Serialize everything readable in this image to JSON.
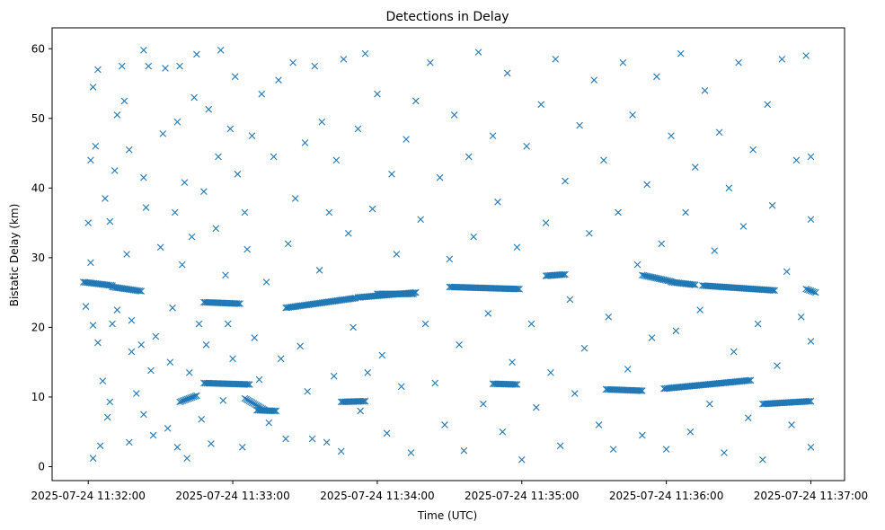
{
  "chart_data": {
    "type": "scatter",
    "title": "Detections in Delay",
    "xlabel": "Time (UTC)",
    "ylabel": "Bistatic Delay (km)",
    "x_start": "2025-07-24 11:32:00",
    "x_ticks": [
      "2025-07-24 11:32:00",
      "2025-07-24 11:33:00",
      "2025-07-24 11:34:00",
      "2025-07-24 11:35:00",
      "2025-07-24 11:36:00",
      "2025-07-24 11:37:00"
    ],
    "ylim": [
      -2,
      63
    ],
    "y_ticks": [
      0,
      10,
      20,
      30,
      40,
      50,
      60
    ],
    "xlim": [
      "2025-07-24 11:31:45",
      "2025-07-24 11:37:14"
    ],
    "grid": false,
    "marker": "x",
    "color": "#1f77b4",
    "tracks": [
      {
        "from": [
          "2025-07-24 11:31:58",
          26.5
        ],
        "to": [
          "2025-07-24 11:32:10",
          26.0
        ]
      },
      {
        "from": [
          "2025-07-24 11:32:10",
          25.8
        ],
        "to": [
          "2025-07-24 11:32:22",
          25.2
        ]
      },
      {
        "from": [
          "2025-07-24 11:32:38",
          9.3
        ],
        "to": [
          "2025-07-24 11:32:45",
          10.2
        ]
      },
      {
        "from": [
          "2025-07-24 11:32:48",
          12.0
        ],
        "to": [
          "2025-07-24 11:33:07",
          11.8
        ]
      },
      {
        "from": [
          "2025-07-24 11:32:48",
          23.6
        ],
        "to": [
          "2025-07-24 11:33:03",
          23.4
        ]
      },
      {
        "from": [
          "2025-07-24 11:33:05",
          9.8
        ],
        "to": [
          "2025-07-24 11:33:13",
          8.2
        ]
      },
      {
        "from": [
          "2025-07-24 11:33:10",
          8.1
        ],
        "to": [
          "2025-07-24 11:33:18",
          8.0
        ]
      },
      {
        "from": [
          "2025-07-24 11:33:22",
          22.8
        ],
        "to": [
          "2025-07-24 11:33:51",
          24.2
        ]
      },
      {
        "from": [
          "2025-07-24 11:33:45",
          9.3
        ],
        "to": [
          "2025-07-24 11:33:55",
          9.4
        ]
      },
      {
        "from": [
          "2025-07-24 11:33:52",
          24.3
        ],
        "to": [
          "2025-07-24 11:34:16",
          25.0
        ]
      },
      {
        "from": [
          "2025-07-24 11:34:00",
          24.8
        ],
        "to": [
          "2025-07-24 11:34:15",
          24.8
        ]
      },
      {
        "from": [
          "2025-07-24 11:34:30",
          25.8
        ],
        "to": [
          "2025-07-24 11:34:59",
          25.5
        ]
      },
      {
        "from": [
          "2025-07-24 11:34:48",
          11.9
        ],
        "to": [
          "2025-07-24 11:34:58",
          11.8
        ]
      },
      {
        "from": [
          "2025-07-24 11:35:10",
          27.4
        ],
        "to": [
          "2025-07-24 11:35:18",
          27.6
        ]
      },
      {
        "from": [
          "2025-07-24 11:35:35",
          11.1
        ],
        "to": [
          "2025-07-24 11:35:50",
          10.9
        ]
      },
      {
        "from": [
          "2025-07-24 11:35:50",
          27.5
        ],
        "to": [
          "2025-07-24 11:36:02",
          26.6
        ]
      },
      {
        "from": [
          "2025-07-24 11:36:02",
          26.5
        ],
        "to": [
          "2025-07-24 11:36:12",
          26.1
        ]
      },
      {
        "from": [
          "2025-07-24 11:35:59",
          11.2
        ],
        "to": [
          "2025-07-24 11:36:35",
          12.4
        ]
      },
      {
        "from": [
          "2025-07-24 11:36:15",
          26.0
        ],
        "to": [
          "2025-07-24 11:36:45",
          25.3
        ]
      },
      {
        "from": [
          "2025-07-24 11:36:40",
          9.0
        ],
        "to": [
          "2025-07-24 11:37:00",
          9.4
        ]
      },
      {
        "from": [
          "2025-07-24 11:36:58",
          25.5
        ],
        "to": [
          "2025-07-24 11:37:02",
          25.0
        ]
      }
    ],
    "scatter_points": [
      [
        "2025-07-24 11:32:00",
        35.0
      ],
      [
        "2025-07-24 11:32:01",
        44.0
      ],
      [
        "2025-07-24 11:32:02",
        54.5
      ],
      [
        "2025-07-24 11:32:04",
        57.0
      ],
      [
        "2025-07-24 11:32:03",
        46.0
      ],
      [
        "2025-07-24 11:32:01",
        29.3
      ],
      [
        "2025-07-24 11:31:59",
        23.0
      ],
      [
        "2025-07-24 11:32:02",
        20.3
      ],
      [
        "2025-07-24 11:32:04",
        17.8
      ],
      [
        "2025-07-24 11:32:02",
        1.2
      ],
      [
        "2025-07-24 11:32:05",
        3.0
      ],
      [
        "2025-07-24 11:32:06",
        12.3
      ],
      [
        "2025-07-24 11:32:08",
        7.1
      ],
      [
        "2025-07-24 11:32:09",
        9.3
      ],
      [
        "2025-07-24 11:32:10",
        20.5
      ],
      [
        "2025-07-24 11:32:12",
        22.5
      ],
      [
        "2025-07-24 11:32:07",
        38.5
      ],
      [
        "2025-07-24 11:32:09",
        35.2
      ],
      [
        "2025-07-24 11:32:11",
        42.5
      ],
      [
        "2025-07-24 11:32:12",
        50.5
      ],
      [
        "2025-07-24 11:32:14",
        57.5
      ],
      [
        "2025-07-24 11:32:15",
        52.5
      ],
      [
        "2025-07-24 11:32:17",
        45.5
      ],
      [
        "2025-07-24 11:32:16",
        30.5
      ],
      [
        "2025-07-24 11:32:18",
        21.0
      ],
      [
        "2025-07-24 11:32:18",
        16.5
      ],
      [
        "2025-07-24 11:32:17",
        3.5
      ],
      [
        "2025-07-24 11:32:20",
        10.5
      ],
      [
        "2025-07-24 11:32:22",
        17.5
      ],
      [
        "2025-07-24 11:32:23",
        7.5
      ],
      [
        "2025-07-24 11:32:24",
        37.2
      ],
      [
        "2025-07-24 11:32:23",
        41.5
      ],
      [
        "2025-07-24 11:32:25",
        57.5
      ],
      [
        "2025-07-24 11:32:23",
        59.8
      ],
      [
        "2025-07-24 11:32:26",
        13.8
      ],
      [
        "2025-07-24 11:32:27",
        4.5
      ],
      [
        "2025-07-24 11:32:28",
        18.7
      ],
      [
        "2025-07-24 11:32:30",
        31.5
      ],
      [
        "2025-07-24 11:32:31",
        47.8
      ],
      [
        "2025-07-24 11:32:32",
        57.2
      ],
      [
        "2025-07-24 11:32:33",
        5.5
      ],
      [
        "2025-07-24 11:32:34",
        15.0
      ],
      [
        "2025-07-24 11:32:35",
        22.8
      ],
      [
        "2025-07-24 11:32:36",
        36.5
      ],
      [
        "2025-07-24 11:32:37",
        2.8
      ],
      [
        "2025-07-24 11:32:37",
        49.5
      ],
      [
        "2025-07-24 11:32:38",
        57.5
      ],
      [
        "2025-07-24 11:32:39",
        29.0
      ],
      [
        "2025-07-24 11:32:40",
        40.8
      ],
      [
        "2025-07-24 11:32:41",
        1.2
      ],
      [
        "2025-07-24 11:32:42",
        13.5
      ],
      [
        "2025-07-24 11:32:43",
        33.0
      ],
      [
        "2025-07-24 11:32:44",
        53.0
      ],
      [
        "2025-07-24 11:32:45",
        59.2
      ],
      [
        "2025-07-24 11:32:46",
        20.5
      ],
      [
        "2025-07-24 11:32:47",
        6.8
      ],
      [
        "2025-07-24 11:32:48",
        39.5
      ],
      [
        "2025-07-24 11:32:49",
        17.5
      ],
      [
        "2025-07-24 11:32:50",
        51.3
      ],
      [
        "2025-07-24 11:32:51",
        3.3
      ],
      [
        "2025-07-24 11:32:53",
        34.2
      ],
      [
        "2025-07-24 11:32:54",
        44.5
      ],
      [
        "2025-07-24 11:32:55",
        59.8
      ],
      [
        "2025-07-24 11:32:56",
        9.5
      ],
      [
        "2025-07-24 11:32:57",
        27.5
      ],
      [
        "2025-07-24 11:32:58",
        20.5
      ],
      [
        "2025-07-24 11:32:59",
        48.5
      ],
      [
        "2025-07-24 11:33:00",
        15.5
      ],
      [
        "2025-07-24 11:33:01",
        56.0
      ],
      [
        "2025-07-24 11:33:02",
        42.0
      ],
      [
        "2025-07-24 11:33:04",
        2.8
      ],
      [
        "2025-07-24 11:33:05",
        36.5
      ],
      [
        "2025-07-24 11:33:06",
        31.2
      ],
      [
        "2025-07-24 11:33:08",
        47.5
      ],
      [
        "2025-07-24 11:33:09",
        18.5
      ],
      [
        "2025-07-24 11:33:11",
        12.5
      ],
      [
        "2025-07-24 11:33:12",
        53.5
      ],
      [
        "2025-07-24 11:33:14",
        26.5
      ],
      [
        "2025-07-24 11:33:15",
        6.3
      ],
      [
        "2025-07-24 11:33:17",
        44.5
      ],
      [
        "2025-07-24 11:33:19",
        55.5
      ],
      [
        "2025-07-24 11:33:20",
        15.5
      ],
      [
        "2025-07-24 11:33:22",
        4.0
      ],
      [
        "2025-07-24 11:33:23",
        32.0
      ],
      [
        "2025-07-24 11:33:25",
        58.0
      ],
      [
        "2025-07-24 11:33:26",
        38.5
      ],
      [
        "2025-07-24 11:33:28",
        17.3
      ],
      [
        "2025-07-24 11:33:30",
        46.5
      ],
      [
        "2025-07-24 11:33:31",
        10.8
      ],
      [
        "2025-07-24 11:33:33",
        4.0
      ],
      [
        "2025-07-24 11:33:34",
        57.5
      ],
      [
        "2025-07-24 11:33:36",
        28.2
      ],
      [
        "2025-07-24 11:33:37",
        49.5
      ],
      [
        "2025-07-24 11:33:39",
        3.5
      ],
      [
        "2025-07-24 11:33:40",
        36.5
      ],
      [
        "2025-07-24 11:33:42",
        13.0
      ],
      [
        "2025-07-24 11:33:43",
        44.0
      ],
      [
        "2025-07-24 11:33:45",
        2.2
      ],
      [
        "2025-07-24 11:33:46",
        58.5
      ],
      [
        "2025-07-24 11:33:48",
        33.5
      ],
      [
        "2025-07-24 11:33:50",
        20.0
      ],
      [
        "2025-07-24 11:33:52",
        48.5
      ],
      [
        "2025-07-24 11:33:53",
        8.0
      ],
      [
        "2025-07-24 11:33:55",
        59.3
      ],
      [
        "2025-07-24 11:33:56",
        13.5
      ],
      [
        "2025-07-24 11:33:58",
        37.0
      ],
      [
        "2025-07-24 11:34:00",
        53.5
      ],
      [
        "2025-07-24 11:34:02",
        16.0
      ],
      [
        "2025-07-24 11:34:04",
        4.8
      ],
      [
        "2025-07-24 11:34:06",
        42.0
      ],
      [
        "2025-07-24 11:34:08",
        30.5
      ],
      [
        "2025-07-24 11:34:10",
        11.5
      ],
      [
        "2025-07-24 11:34:12",
        47.0
      ],
      [
        "2025-07-24 11:34:14",
        2.0
      ],
      [
        "2025-07-24 11:34:16",
        52.5
      ],
      [
        "2025-07-24 11:34:18",
        35.5
      ],
      [
        "2025-07-24 11:34:20",
        20.5
      ],
      [
        "2025-07-24 11:34:22",
        58.0
      ],
      [
        "2025-07-24 11:34:24",
        12.0
      ],
      [
        "2025-07-24 11:34:26",
        41.5
      ],
      [
        "2025-07-24 11:34:28",
        6.0
      ],
      [
        "2025-07-24 11:34:30",
        29.8
      ],
      [
        "2025-07-24 11:34:32",
        50.5
      ],
      [
        "2025-07-24 11:34:34",
        17.5
      ],
      [
        "2025-07-24 11:34:36",
        2.3
      ],
      [
        "2025-07-24 11:34:38",
        44.5
      ],
      [
        "2025-07-24 11:34:40",
        33.0
      ],
      [
        "2025-07-24 11:34:42",
        59.5
      ],
      [
        "2025-07-24 11:34:44",
        9.0
      ],
      [
        "2025-07-24 11:34:46",
        22.0
      ],
      [
        "2025-07-24 11:34:48",
        47.5
      ],
      [
        "2025-07-24 11:34:50",
        38.0
      ],
      [
        "2025-07-24 11:34:52",
        5.0
      ],
      [
        "2025-07-24 11:34:54",
        56.5
      ],
      [
        "2025-07-24 11:34:56",
        15.0
      ],
      [
        "2025-07-24 11:34:58",
        31.5
      ],
      [
        "2025-07-24 11:35:00",
        1.0
      ],
      [
        "2025-07-24 11:35:02",
        46.0
      ],
      [
        "2025-07-24 11:35:04",
        20.5
      ],
      [
        "2025-07-24 11:35:06",
        8.5
      ],
      [
        "2025-07-24 11:35:08",
        52.0
      ],
      [
        "2025-07-24 11:35:10",
        35.0
      ],
      [
        "2025-07-24 11:35:12",
        13.5
      ],
      [
        "2025-07-24 11:35:14",
        58.5
      ],
      [
        "2025-07-24 11:35:16",
        3.0
      ],
      [
        "2025-07-24 11:35:18",
        41.0
      ],
      [
        "2025-07-24 11:35:20",
        24.0
      ],
      [
        "2025-07-24 11:35:22",
        10.5
      ],
      [
        "2025-07-24 11:35:24",
        49.0
      ],
      [
        "2025-07-24 11:35:26",
        17.0
      ],
      [
        "2025-07-24 11:35:28",
        33.5
      ],
      [
        "2025-07-24 11:35:30",
        55.5
      ],
      [
        "2025-07-24 11:35:32",
        6.0
      ],
      [
        "2025-07-24 11:35:34",
        44.0
      ],
      [
        "2025-07-24 11:35:36",
        21.5
      ],
      [
        "2025-07-24 11:35:38",
        2.5
      ],
      [
        "2025-07-24 11:35:40",
        36.5
      ],
      [
        "2025-07-24 11:35:42",
        58.0
      ],
      [
        "2025-07-24 11:35:44",
        14.0
      ],
      [
        "2025-07-24 11:35:46",
        50.5
      ],
      [
        "2025-07-24 11:35:48",
        29.0
      ],
      [
        "2025-07-24 11:35:50",
        4.5
      ],
      [
        "2025-07-24 11:35:52",
        40.5
      ],
      [
        "2025-07-24 11:35:54",
        18.5
      ],
      [
        "2025-07-24 11:35:56",
        56.0
      ],
      [
        "2025-07-24 11:35:58",
        32.0
      ],
      [
        "2025-07-24 11:36:00",
        2.5
      ],
      [
        "2025-07-24 11:36:02",
        47.5
      ],
      [
        "2025-07-24 11:36:04",
        19.5
      ],
      [
        "2025-07-24 11:36:06",
        59.3
      ],
      [
        "2025-07-24 11:36:08",
        36.5
      ],
      [
        "2025-07-24 11:36:10",
        5.0
      ],
      [
        "2025-07-24 11:36:12",
        43.0
      ],
      [
        "2025-07-24 11:36:14",
        22.5
      ],
      [
        "2025-07-24 11:36:16",
        54.0
      ],
      [
        "2025-07-24 11:36:18",
        9.0
      ],
      [
        "2025-07-24 11:36:20",
        31.0
      ],
      [
        "2025-07-24 11:36:22",
        48.0
      ],
      [
        "2025-07-24 11:36:24",
        2.0
      ],
      [
        "2025-07-24 11:36:26",
        40.0
      ],
      [
        "2025-07-24 11:36:28",
        16.5
      ],
      [
        "2025-07-24 11:36:30",
        58.0
      ],
      [
        "2025-07-24 11:36:32",
        34.5
      ],
      [
        "2025-07-24 11:36:34",
        7.0
      ],
      [
        "2025-07-24 11:36:36",
        45.5
      ],
      [
        "2025-07-24 11:36:38",
        20.5
      ],
      [
        "2025-07-24 11:36:40",
        1.0
      ],
      [
        "2025-07-24 11:36:42",
        52.0
      ],
      [
        "2025-07-24 11:36:44",
        37.5
      ],
      [
        "2025-07-24 11:36:46",
        14.5
      ],
      [
        "2025-07-24 11:36:48",
        58.5
      ],
      [
        "2025-07-24 11:36:50",
        28.0
      ],
      [
        "2025-07-24 11:36:52",
        6.0
      ],
      [
        "2025-07-24 11:36:54",
        44.0
      ],
      [
        "2025-07-24 11:36:56",
        21.5
      ],
      [
        "2025-07-24 11:36:58",
        59.0
      ],
      [
        "2025-07-24 11:37:00",
        35.5
      ],
      [
        "2025-07-24 11:37:00",
        2.8
      ],
      [
        "2025-07-24 11:37:00",
        18.0
      ],
      [
        "2025-07-24 11:37:00",
        44.5
      ]
    ]
  }
}
